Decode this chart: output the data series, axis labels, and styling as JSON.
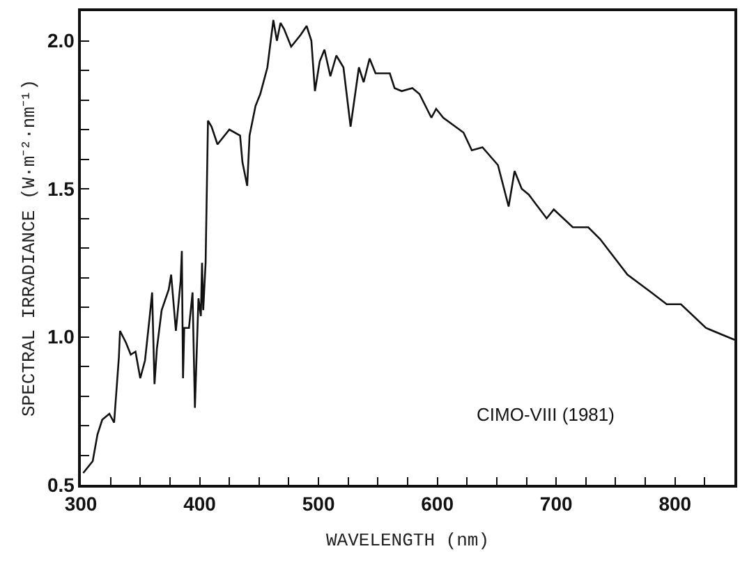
{
  "chart_data": {
    "type": "line",
    "xlabel": "WAVELENGTH (nm)",
    "ylabel": "SPECTRAL IRRADIANCE (W·m⁻²·nm⁻¹)",
    "annotations": [
      "CIMO-VIII (1981)"
    ],
    "xlim": [
      300,
      850
    ],
    "ylim": [
      0.5,
      2.1
    ],
    "xticks": [
      300,
      {
        "value": 325,
        "label": null
      },
      400,
      {
        "value": 350,
        "label": null
      },
      {
        "value": 375,
        "label": null
      },
      {
        "value": 425,
        "label": null
      },
      {
        "value": 450,
        "label": null
      },
      {
        "value": 475,
        "label": null
      },
      500,
      {
        "value": 525,
        "label": null
      },
      {
        "value": 550,
        "label": null
      },
      {
        "value": 575,
        "label": null
      },
      600,
      {
        "value": 625,
        "label": null
      },
      {
        "value": 650,
        "label": null
      },
      {
        "value": 675,
        "label": null
      },
      700,
      {
        "value": 725,
        "label": null
      },
      {
        "value": 750,
        "label": null
      },
      {
        "value": 775,
        "label": null
      },
      800,
      {
        "value": 825,
        "label": null
      }
    ],
    "yticks": [
      {
        "value": 0.5,
        "label": "0.5"
      },
      {
        "value": 0.6,
        "label": null
      },
      {
        "value": 0.7,
        "label": null
      },
      {
        "value": 0.8,
        "label": null
      },
      {
        "value": 0.9,
        "label": null
      },
      {
        "value": 1.0,
        "label": "1.0"
      },
      {
        "value": 1.1,
        "label": null
      },
      {
        "value": 1.2,
        "label": null
      },
      {
        "value": 1.3,
        "label": null
      },
      {
        "value": 1.4,
        "label": null
      },
      {
        "value": 1.5,
        "label": "1.5"
      },
      {
        "value": 1.6,
        "label": null
      },
      {
        "value": 1.7,
        "label": null
      },
      {
        "value": 1.8,
        "label": null
      },
      {
        "value": 1.9,
        "label": null
      },
      {
        "value": 2.0,
        "label": "2.0"
      }
    ],
    "series": [
      {
        "color": "#111111",
        "x": [
          302,
          310,
          314,
          318,
          324,
          328,
          332,
          333,
          338,
          342,
          346,
          350,
          354,
          358,
          360,
          362,
          364,
          368,
          374,
          376,
          380,
          384,
          385,
          386,
          387,
          391,
          394,
          396,
          399,
          401,
          402,
          403,
          405,
          407,
          410,
          415,
          425,
          434,
          436,
          440,
          442,
          447,
          451,
          457,
          462,
          465,
          468,
          471,
          477,
          485,
          490,
          494,
          497,
          501,
          505,
          510,
          515,
          521,
          527,
          534,
          538,
          543,
          548,
          560,
          564,
          570,
          579,
          585,
          595,
          599,
          605,
          622,
          629,
          638,
          651,
          660,
          665,
          671,
          677,
          692,
          698,
          714,
          727,
          737,
          760,
          780,
          793,
          805,
          826,
          850
        ],
        "values": [
          0.54,
          0.58,
          0.67,
          0.72,
          0.74,
          0.71,
          0.93,
          1.02,
          0.98,
          0.94,
          0.95,
          0.86,
          0.92,
          1.07,
          1.15,
          0.84,
          0.96,
          1.09,
          1.16,
          1.21,
          1.02,
          1.19,
          1.29,
          0.86,
          1.03,
          1.03,
          1.15,
          0.76,
          1.13,
          1.07,
          1.25,
          1.09,
          1.25,
          1.73,
          1.71,
          1.65,
          1.7,
          1.68,
          1.59,
          1.51,
          1.68,
          1.78,
          1.82,
          1.91,
          2.07,
          2.0,
          2.06,
          2.04,
          1.98,
          2.02,
          2.05,
          2.0,
          1.83,
          1.93,
          1.97,
          1.88,
          1.95,
          1.91,
          1.71,
          1.91,
          1.86,
          1.94,
          1.89,
          1.89,
          1.84,
          1.83,
          1.84,
          1.82,
          1.74,
          1.77,
          1.74,
          1.69,
          1.63,
          1.64,
          1.58,
          1.44,
          1.56,
          1.5,
          1.48,
          1.4,
          1.43,
          1.37,
          1.37,
          1.33,
          1.21,
          1.15,
          1.11,
          1.11,
          1.03,
          0.99
        ]
      }
    ]
  }
}
